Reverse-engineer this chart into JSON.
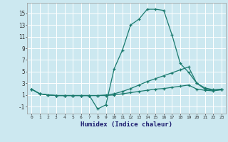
{
  "xlabel": "Humidex (Indice chaleur)",
  "bg_color": "#cce8f0",
  "grid_color": "#ffffff",
  "line_color": "#1a7a6e",
  "x_ticks": [
    0,
    1,
    2,
    3,
    4,
    5,
    6,
    7,
    8,
    9,
    10,
    11,
    12,
    13,
    14,
    15,
    16,
    17,
    18,
    19,
    20,
    21,
    22,
    23
  ],
  "y_ticks": [
    -1,
    1,
    3,
    5,
    7,
    9,
    11,
    13,
    15
  ],
  "xlim": [
    -0.5,
    23.5
  ],
  "ylim": [
    -2.2,
    16.8
  ],
  "line1_x": [
    0,
    1,
    2,
    3,
    4,
    5,
    6,
    7,
    8,
    9,
    10,
    11,
    12,
    13,
    14,
    15,
    16,
    17,
    18,
    19,
    20,
    21,
    22,
    23
  ],
  "line1_y": [
    2.0,
    1.2,
    1.0,
    0.9,
    0.9,
    0.9,
    0.9,
    0.9,
    -1.4,
    -0.7,
    5.5,
    8.7,
    13.0,
    14.0,
    15.7,
    15.7,
    15.5,
    11.3,
    6.4,
    4.9,
    3.0,
    2.0,
    1.8,
    1.9
  ],
  "line2_x": [
    0,
    1,
    2,
    3,
    4,
    5,
    6,
    7,
    8,
    9,
    10,
    11,
    12,
    13,
    14,
    15,
    16,
    17,
    18,
    19,
    20,
    21,
    22,
    23
  ],
  "line2_y": [
    2.0,
    1.2,
    1.0,
    0.9,
    0.9,
    0.9,
    0.9,
    0.9,
    0.9,
    1.0,
    1.2,
    1.6,
    2.1,
    2.7,
    3.3,
    3.8,
    4.3,
    4.8,
    5.3,
    5.8,
    3.0,
    2.2,
    1.9,
    2.0
  ],
  "line3_x": [
    0,
    1,
    2,
    3,
    4,
    5,
    6,
    7,
    8,
    9,
    10,
    11,
    12,
    13,
    14,
    15,
    16,
    17,
    18,
    19,
    20,
    21,
    22,
    23
  ],
  "line3_y": [
    2.0,
    1.2,
    1.0,
    0.9,
    0.9,
    0.9,
    0.9,
    0.9,
    0.9,
    0.9,
    1.0,
    1.2,
    1.4,
    1.6,
    1.8,
    2.0,
    2.1,
    2.3,
    2.5,
    2.7,
    2.0,
    1.8,
    1.7,
    1.9
  ]
}
